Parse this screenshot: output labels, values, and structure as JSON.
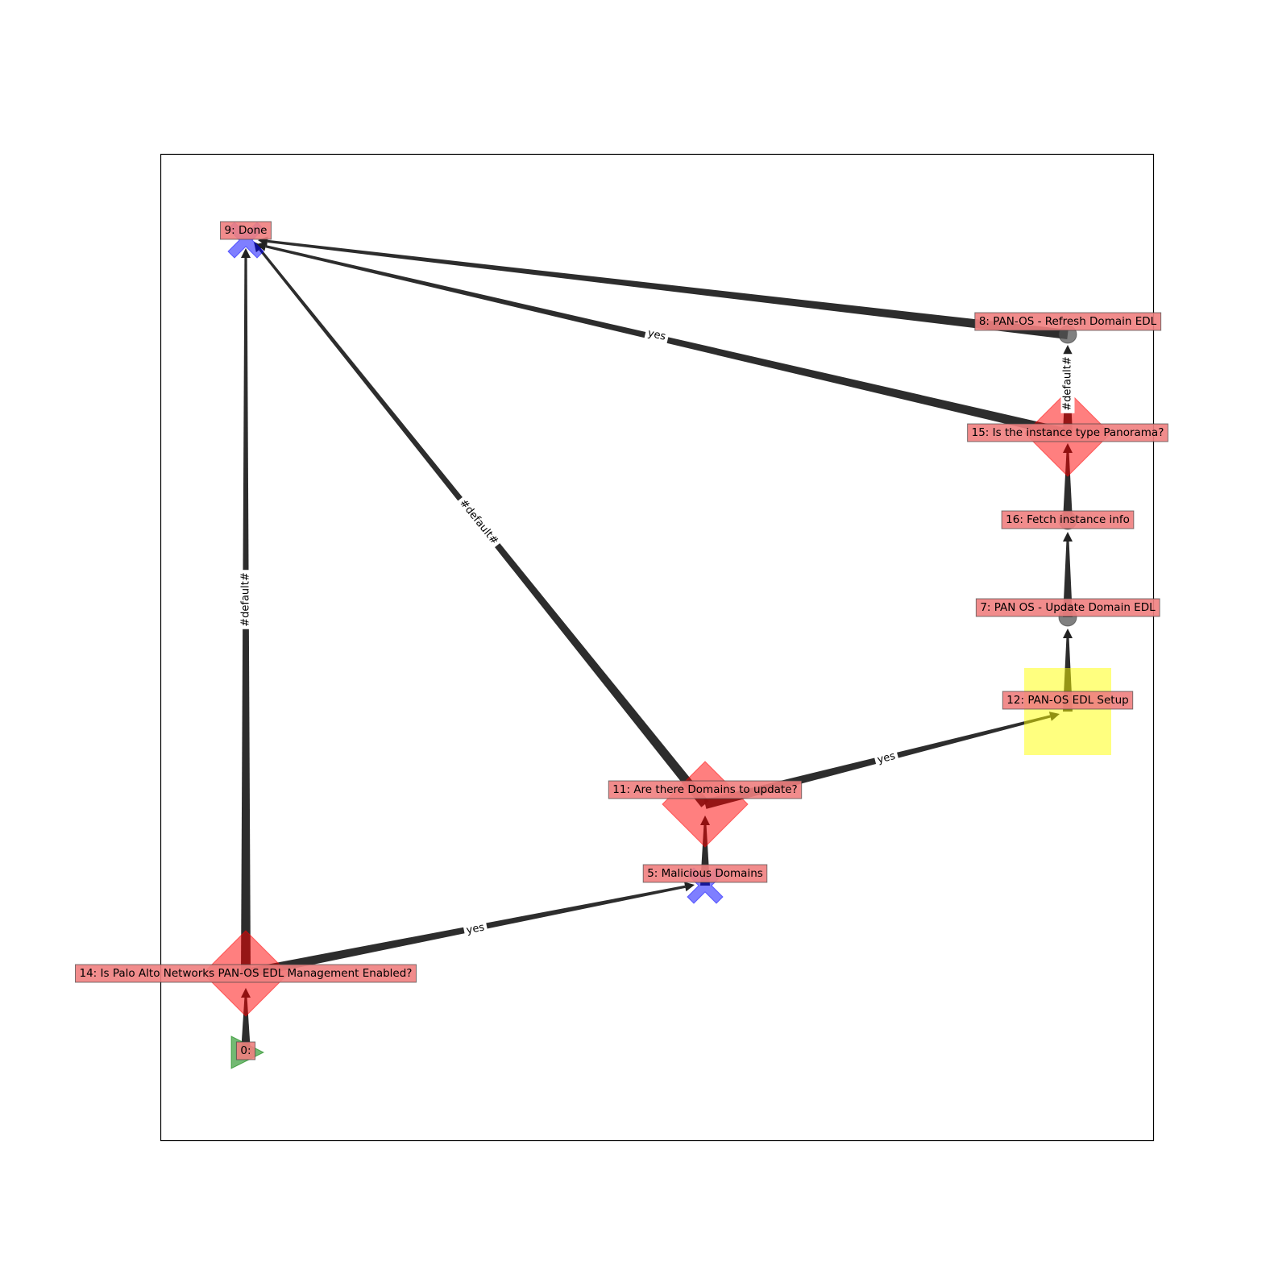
{
  "diagram": {
    "title": "",
    "colors": {
      "edge": "#222222",
      "label_box": "#f08080",
      "condition_node": "#ff0000",
      "start_node": "#008000",
      "playbook_node": "#0000ff",
      "setup_node": "#ffff00",
      "task_node": "#555555"
    },
    "nodes": [
      {
        "id": "0",
        "label": "0:",
        "shape": "triangle-right",
        "icon": "start-triangle-icon"
      },
      {
        "id": "14",
        "label": "14: Is Palo Alto Networks PAN-OS EDL Management Enabled?",
        "shape": "diamond",
        "icon": "condition-diamond-icon"
      },
      {
        "id": "5",
        "label": "5: Malicious Domains",
        "shape": "x",
        "icon": "playbook-x-icon"
      },
      {
        "id": "11",
        "label": "11: Are there Domains to update?",
        "shape": "diamond",
        "icon": "condition-diamond-icon"
      },
      {
        "id": "12",
        "label": "12: PAN-OS EDL Setup",
        "shape": "square",
        "icon": "setup-square-icon"
      },
      {
        "id": "7",
        "label": "7: PAN OS - Update Domain EDL",
        "shape": "circle",
        "icon": "task-circle-icon"
      },
      {
        "id": "16",
        "label": "16: Fetch instance info",
        "shape": "circle",
        "icon": "task-circle-icon"
      },
      {
        "id": "15",
        "label": "15: Is the instance type Panorama?",
        "shape": "diamond",
        "icon": "condition-diamond-icon"
      },
      {
        "id": "8",
        "label": "8: PAN-OS - Refresh Domain EDL",
        "shape": "circle",
        "icon": "task-circle-icon"
      },
      {
        "id": "9",
        "label": "9: Done",
        "shape": "x",
        "icon": "playbook-x-icon"
      }
    ],
    "edges": [
      {
        "from": "0",
        "to": "14",
        "label": ""
      },
      {
        "from": "14",
        "to": "9",
        "label": "#default#"
      },
      {
        "from": "14",
        "to": "5",
        "label": "yes"
      },
      {
        "from": "5",
        "to": "11",
        "label": ""
      },
      {
        "from": "11",
        "to": "9",
        "label": "#default#"
      },
      {
        "from": "11",
        "to": "12",
        "label": "yes"
      },
      {
        "from": "12",
        "to": "7",
        "label": ""
      },
      {
        "from": "7",
        "to": "16",
        "label": ""
      },
      {
        "from": "16",
        "to": "15",
        "label": ""
      },
      {
        "from": "15",
        "to": "8",
        "label": "#default#"
      },
      {
        "from": "15",
        "to": "9",
        "label": "yes"
      },
      {
        "from": "8",
        "to": "9",
        "label": ""
      }
    ]
  }
}
